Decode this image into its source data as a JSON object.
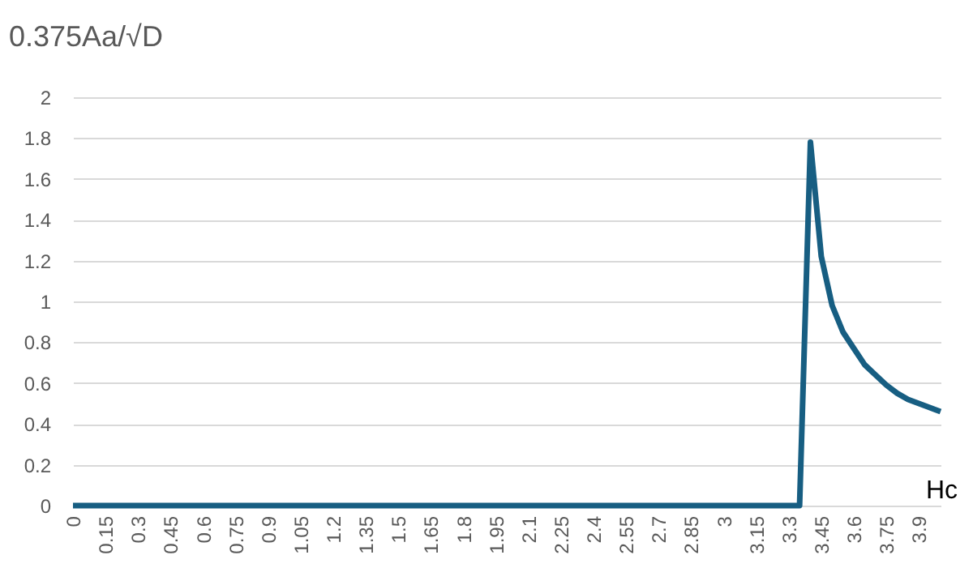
{
  "chart_data": {
    "type": "line",
    "xlabel": "Hc",
    "ylabel": "0.375Aa/√D",
    "x": [
      0,
      3.35,
      3.4,
      3.45,
      3.5,
      3.55,
      3.6,
      3.65,
      3.7,
      3.75,
      3.8,
      3.85,
      3.9,
      3.95,
      4.0
    ],
    "series": [
      {
        "color": "#175e82",
        "values": [
          0,
          0,
          1.78,
          1.22,
          0.98,
          0.85,
          0.77,
          0.69,
          0.64,
          0.59,
          0.55,
          0.52,
          0.5,
          0.48,
          0.46
        ]
      }
    ],
    "xlim": [
      0,
      4
    ],
    "xticks": [
      0,
      0.15,
      0.3,
      0.45,
      0.6,
      0.75,
      0.9,
      1.05,
      1.2,
      1.35,
      1.5,
      1.65,
      1.8,
      1.95,
      2.1,
      2.25,
      2.4,
      2.55,
      2.7,
      2.85,
      3,
      3.15,
      3.3,
      3.45,
      3.6,
      3.75,
      3.9
    ],
    "ylim": [
      0,
      2
    ],
    "yticks": [
      0,
      0.2,
      0.4,
      0.6,
      0.8,
      1,
      1.2,
      1.4,
      1.6,
      1.8,
      2
    ],
    "grid": "y",
    "marker": "none",
    "line_style": "solid"
  }
}
